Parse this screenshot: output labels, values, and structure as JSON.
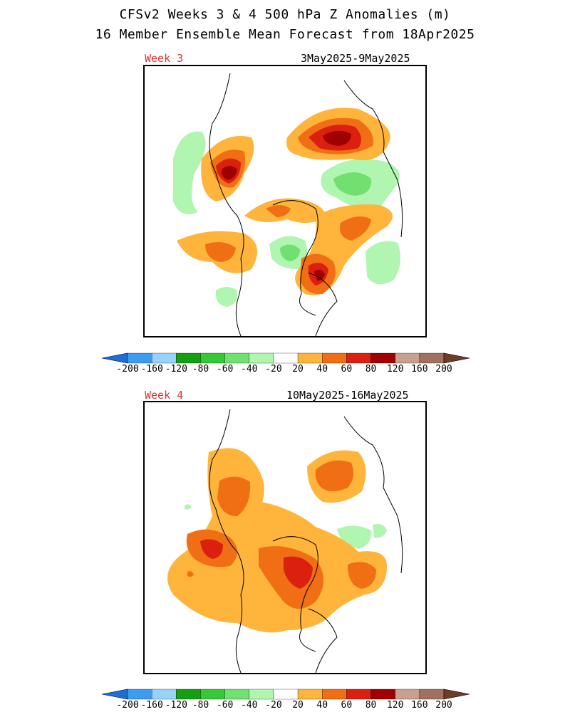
{
  "header": {
    "title_line1": "CFSv2 Weeks 3 & 4 500 hPa Z Anomalies (m)",
    "title_line2": "16 Member Ensemble Mean Forecast from 18Apr2025"
  },
  "panels": [
    {
      "week_label": "Week 3",
      "date_range": "3May2025-9May2025"
    },
    {
      "week_label": "Week 4",
      "date_range": "10May2025-16May2025"
    }
  ],
  "colorbar": {
    "labels": [
      "-200",
      "-160",
      "-120",
      "-80",
      "-60",
      "-40",
      "-20",
      "20",
      "40",
      "60",
      "80",
      "120",
      "160",
      "200"
    ],
    "colors": [
      "#1e6ed8",
      "#3c9cf0",
      "#96d2fa",
      "#10a010",
      "#36c836",
      "#70e070",
      "#b0f5b0",
      "#ffffff",
      "#ffb43c",
      "#f06e14",
      "#dc2010",
      "#a00000",
      "#c8a090",
      "#a07060",
      "#6e3c28"
    ]
  },
  "palette": {
    "neg_low": "#b0f5b0",
    "neg_mid": "#70e070",
    "neg_high": "#36c836",
    "pos_20": "#ffb43c",
    "pos_40": "#f06e14",
    "pos_60": "#dc2010",
    "pos_80": "#a00000"
  }
}
